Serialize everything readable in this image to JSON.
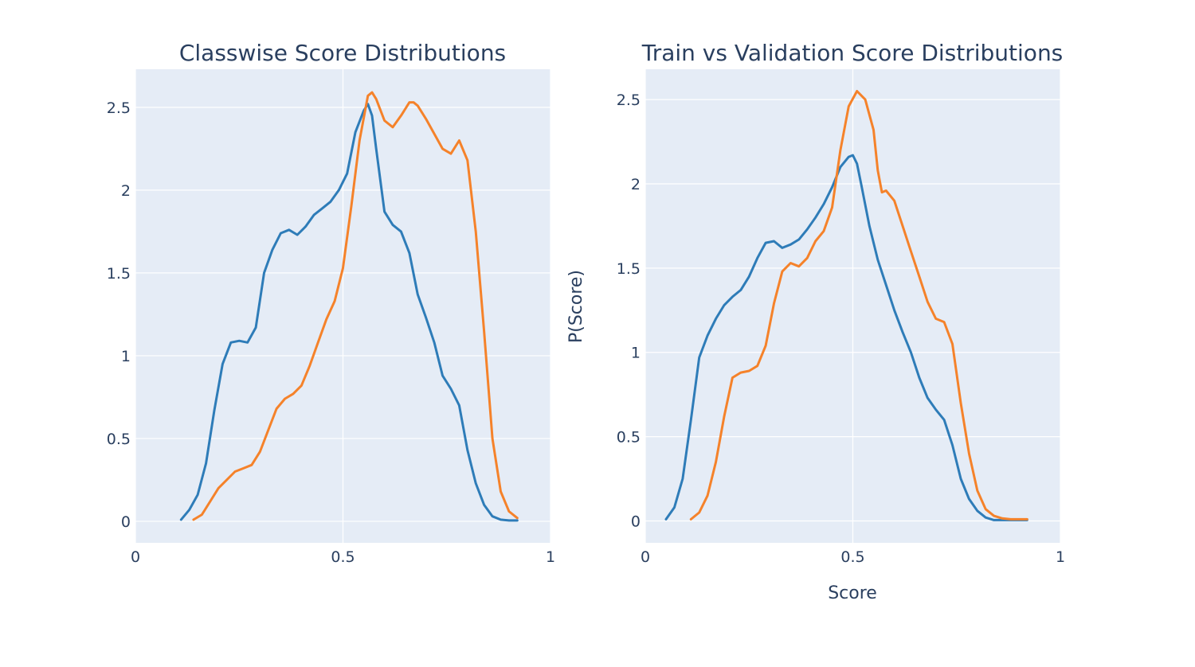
{
  "colors": {
    "series_a": "#2e7cb8",
    "series_b": "#f5822a",
    "plot_bg": "#e5ecf6",
    "grid": "#ffffff",
    "text": "#2a3f5f"
  },
  "chart_data": [
    {
      "type": "line",
      "title": "Classwise Score Distributions",
      "xlabel": "",
      "ylabel": "",
      "xlim": [
        0,
        1
      ],
      "ylim": [
        -0.13,
        2.73
      ],
      "xticks": [
        "0",
        "0.5",
        "1"
      ],
      "xtick_values": [
        0,
        0.5,
        1
      ],
      "yticks": [
        "0",
        "0.5",
        "1",
        "1.5",
        "2",
        "2.5"
      ],
      "ytick_values": [
        0,
        0.5,
        1,
        1.5,
        2,
        2.5
      ],
      "grid": true,
      "series": [
        {
          "color": "#2e7cb8",
          "x": [
            0.11,
            0.13,
            0.15,
            0.17,
            0.19,
            0.21,
            0.23,
            0.25,
            0.27,
            0.29,
            0.31,
            0.33,
            0.35,
            0.37,
            0.39,
            0.41,
            0.43,
            0.45,
            0.47,
            0.49,
            0.51,
            0.53,
            0.55,
            0.56,
            0.57,
            0.58,
            0.6,
            0.62,
            0.64,
            0.66,
            0.68,
            0.7,
            0.72,
            0.74,
            0.76,
            0.78,
            0.8,
            0.82,
            0.84,
            0.86,
            0.88,
            0.9,
            0.92
          ],
          "y": [
            0.01,
            0.07,
            0.16,
            0.35,
            0.67,
            0.95,
            1.08,
            1.09,
            1.08,
            1.17,
            1.5,
            1.64,
            1.74,
            1.76,
            1.73,
            1.78,
            1.85,
            1.89,
            1.93,
            2.0,
            2.1,
            2.35,
            2.48,
            2.52,
            2.45,
            2.25,
            1.87,
            1.79,
            1.75,
            1.62,
            1.37,
            1.23,
            1.08,
            0.88,
            0.8,
            0.7,
            0.43,
            0.23,
            0.1,
            0.03,
            0.01,
            0.005,
            0.005
          ]
        },
        {
          "color": "#f5822a",
          "x": [
            0.14,
            0.16,
            0.18,
            0.2,
            0.22,
            0.24,
            0.26,
            0.28,
            0.3,
            0.32,
            0.34,
            0.36,
            0.38,
            0.4,
            0.42,
            0.44,
            0.46,
            0.48,
            0.5,
            0.52,
            0.54,
            0.56,
            0.57,
            0.58,
            0.6,
            0.62,
            0.64,
            0.66,
            0.67,
            0.68,
            0.7,
            0.72,
            0.74,
            0.76,
            0.78,
            0.8,
            0.82,
            0.84,
            0.86,
            0.88,
            0.9,
            0.92
          ],
          "y": [
            0.01,
            0.04,
            0.12,
            0.2,
            0.25,
            0.3,
            0.32,
            0.34,
            0.42,
            0.55,
            0.68,
            0.74,
            0.77,
            0.82,
            0.94,
            1.08,
            1.22,
            1.33,
            1.53,
            1.9,
            2.3,
            2.57,
            2.59,
            2.55,
            2.42,
            2.38,
            2.45,
            2.53,
            2.53,
            2.51,
            2.43,
            2.34,
            2.25,
            2.22,
            2.3,
            2.18,
            1.75,
            1.15,
            0.5,
            0.18,
            0.06,
            0.02
          ]
        }
      ]
    },
    {
      "type": "line",
      "title": "Train vs Validation Score Distributions",
      "xlabel": "Score",
      "ylabel": "P(Score)",
      "xlim": [
        0,
        1
      ],
      "ylim": [
        -0.13,
        2.68
      ],
      "xticks": [
        "0",
        "0.5",
        "1"
      ],
      "xtick_values": [
        0,
        0.5,
        1
      ],
      "yticks": [
        "0",
        "0.5",
        "1",
        "1.5",
        "2",
        "2.5"
      ],
      "ytick_values": [
        0,
        0.5,
        1,
        1.5,
        2,
        2.5
      ],
      "grid": true,
      "series": [
        {
          "color": "#2e7cb8",
          "x": [
            0.05,
            0.07,
            0.09,
            0.11,
            0.13,
            0.15,
            0.17,
            0.19,
            0.21,
            0.23,
            0.25,
            0.27,
            0.29,
            0.31,
            0.33,
            0.35,
            0.37,
            0.39,
            0.41,
            0.43,
            0.45,
            0.47,
            0.49,
            0.5,
            0.51,
            0.52,
            0.54,
            0.56,
            0.58,
            0.6,
            0.62,
            0.64,
            0.66,
            0.68,
            0.7,
            0.72,
            0.74,
            0.76,
            0.78,
            0.8,
            0.82,
            0.84,
            0.86,
            0.88,
            0.9,
            0.92
          ],
          "y": [
            0.01,
            0.08,
            0.25,
            0.6,
            0.97,
            1.1,
            1.2,
            1.28,
            1.33,
            1.37,
            1.45,
            1.56,
            1.65,
            1.66,
            1.62,
            1.64,
            1.67,
            1.73,
            1.8,
            1.88,
            1.98,
            2.1,
            2.16,
            2.17,
            2.12,
            2.0,
            1.75,
            1.55,
            1.4,
            1.25,
            1.12,
            1.0,
            0.85,
            0.73,
            0.66,
            0.6,
            0.45,
            0.25,
            0.13,
            0.06,
            0.02,
            0.005,
            0.005,
            0.005,
            0.005,
            0.005
          ]
        },
        {
          "color": "#f5822a",
          "x": [
            0.11,
            0.13,
            0.15,
            0.17,
            0.19,
            0.21,
            0.23,
            0.25,
            0.27,
            0.29,
            0.31,
            0.33,
            0.35,
            0.37,
            0.39,
            0.41,
            0.43,
            0.45,
            0.47,
            0.49,
            0.51,
            0.53,
            0.55,
            0.56,
            0.57,
            0.58,
            0.6,
            0.62,
            0.64,
            0.66,
            0.68,
            0.7,
            0.72,
            0.74,
            0.76,
            0.78,
            0.8,
            0.82,
            0.84,
            0.86,
            0.88,
            0.9,
            0.92
          ],
          "y": [
            0.01,
            0.05,
            0.15,
            0.35,
            0.62,
            0.85,
            0.88,
            0.89,
            0.92,
            1.04,
            1.29,
            1.48,
            1.53,
            1.51,
            1.56,
            1.66,
            1.72,
            1.86,
            2.2,
            2.46,
            2.55,
            2.5,
            2.32,
            2.08,
            1.95,
            1.96,
            1.9,
            1.75,
            1.6,
            1.45,
            1.3,
            1.2,
            1.18,
            1.05,
            0.7,
            0.4,
            0.18,
            0.07,
            0.03,
            0.015,
            0.01,
            0.01,
            0.01
          ]
        }
      ]
    }
  ]
}
